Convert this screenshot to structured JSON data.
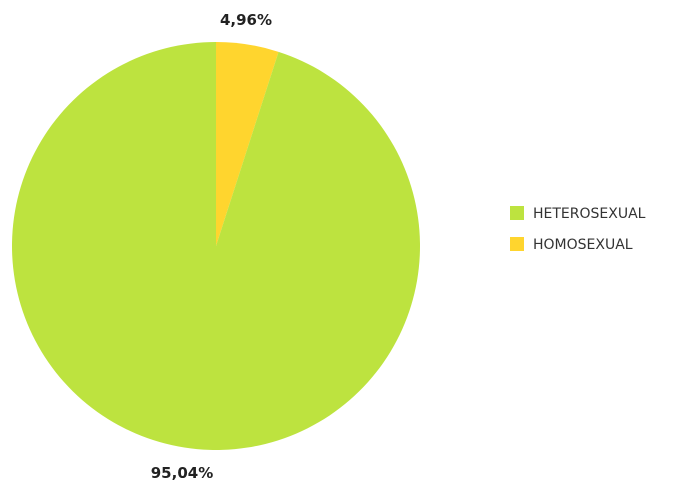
{
  "chart_data": {
    "type": "pie",
    "slices": [
      {
        "name": "HETEROSEXUAL",
        "value": 95.04,
        "label": "95,04%",
        "color": "#BDE33F"
      },
      {
        "name": "HOMOSEXUAL",
        "value": 4.96,
        "label": "4,96%",
        "color": "#FFD52E"
      }
    ],
    "legend_position": "right"
  }
}
